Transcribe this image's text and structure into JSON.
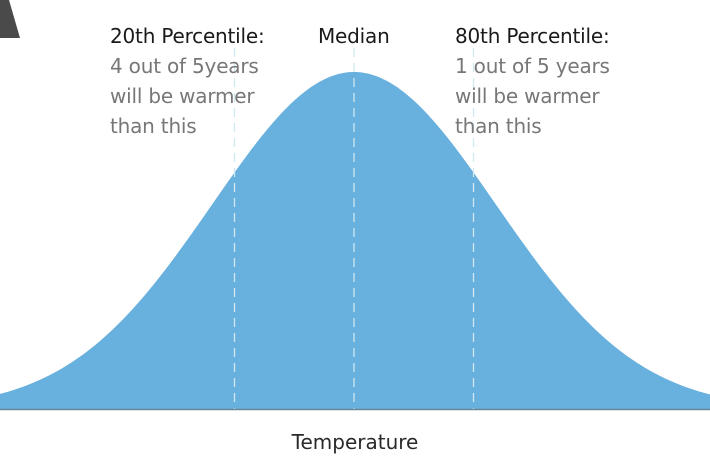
{
  "chart_data": {
    "type": "area",
    "xlabel": "Temperature",
    "ylabel": "",
    "distribution": "normal",
    "markers": [
      {
        "label": "20th Percentile:",
        "percentile": 20,
        "z": -0.8416
      },
      {
        "label": "Median",
        "percentile": 50,
        "z": 0
      },
      {
        "label": "80th Percentile:",
        "percentile": 80,
        "z": 0.8416
      }
    ],
    "fill_color": "#68b0de",
    "marker_line_color": "#cfe8f2",
    "baseline_color": "#6a8899"
  },
  "annotations": {
    "p20": {
      "heading": "20th Percentile:",
      "lines": [
        "4 out of 5years",
        "will be warmer",
        "than this"
      ]
    },
    "median": {
      "heading": "Median"
    },
    "p80": {
      "heading": "80th Percentile:",
      "lines": [
        "1 out of 5 years",
        "will be warmer",
        "than this"
      ]
    }
  }
}
